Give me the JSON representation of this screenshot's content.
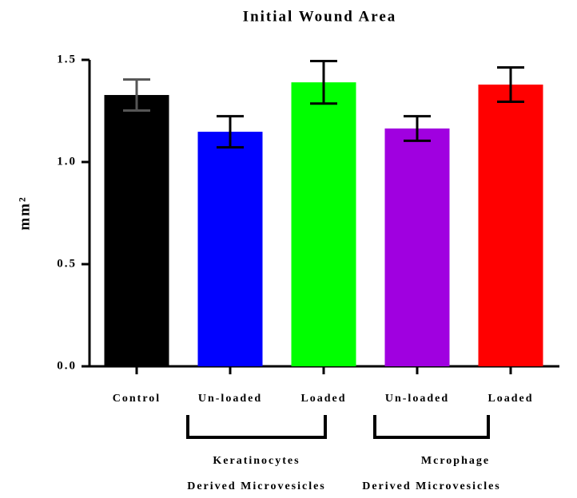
{
  "chart_data": {
    "type": "bar",
    "title": "Initial Wound Area",
    "ylabel": "mm²",
    "categories": [
      "Control",
      "Un-loaded",
      "Loaded",
      "Un-loaded",
      "Loaded"
    ],
    "values": [
      1.328,
      1.148,
      1.39,
      1.164,
      1.379
    ],
    "errors": [
      0.076,
      0.076,
      0.104,
      0.06,
      0.084
    ],
    "colors": [
      "#000000",
      "#0000ff",
      "#00ff00",
      "#a000e0",
      "#ff0000"
    ],
    "error_colors": [
      "#555555",
      "#000000",
      "#000000",
      "#000000",
      "#000000"
    ],
    "ylim": [
      0,
      1.5
    ],
    "yticks": [
      {
        "value": 0,
        "label": "0.0"
      },
      {
        "value": 0.5,
        "label": "0.5"
      },
      {
        "value": 1,
        "label": "1.0"
      },
      {
        "value": 1.5,
        "label": "1.5"
      }
    ],
    "groups": [
      [
        "Keratinocytes",
        "Derived Microvesicles"
      ],
      [
        "Mcrophage",
        "Derived Microvesicles"
      ]
    ]
  }
}
